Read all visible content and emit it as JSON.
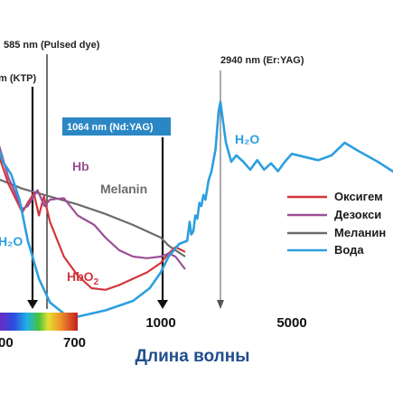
{
  "chart_data": {
    "type": "line",
    "title": "",
    "xlabel": "Длина волны",
    "ylabel": "",
    "x_ticks": [
      "00",
      "700",
      "1000",
      "5000"
    ],
    "annotations": [
      {
        "label": "585 nm (Pulsed dye)",
        "x": 585,
        "unit": "nm"
      },
      {
        "label": "m (KTP)",
        "x": 532,
        "unit": "nm"
      },
      {
        "label": "1064 nm (Nd:YAG)",
        "x": 1064,
        "unit": "nm"
      },
      {
        "label": "2940 nm (Er:YAG)",
        "x": 2940,
        "unit": "nm"
      }
    ],
    "inline_labels": {
      "hb": "Hb",
      "hbo2_main": "HbO",
      "hbo2_sub": "2",
      "melanin": "Melanin",
      "water_left": "H₂O",
      "water_right": "H₂O"
    },
    "legend": [
      "Оксигем",
      "Дезокси",
      "Меланин",
      "Вода"
    ],
    "colors": {
      "oxy": "#d2363c",
      "deoxy": "#9b4f96",
      "melanin": "#6b6b6b",
      "water": "#2c9fe0",
      "nd_yag_box": "#2a87c4",
      "axis_label": "#1f4e8c"
    },
    "series": [
      {
        "name": "Оксигем",
        "color": "#d2363c",
        "points": [
          [
            400,
            5.2
          ],
          [
            450,
            3.9
          ],
          [
            500,
            3.0
          ],
          [
            520,
            3.3
          ],
          [
            542,
            3.6
          ],
          [
            560,
            2.9
          ],
          [
            578,
            3.5
          ],
          [
            600,
            2.7
          ],
          [
            650,
            1.6
          ],
          [
            700,
            1.0
          ],
          [
            750,
            0.6
          ],
          [
            800,
            0.55
          ],
          [
            850,
            0.7
          ],
          [
            900,
            0.9
          ],
          [
            950,
            1.1
          ],
          [
            1000,
            1.4
          ],
          [
            1064,
            1.7
          ],
          [
            1120,
            1.9
          ],
          [
            1200,
            1.75
          ]
        ]
      },
      {
        "name": "Дезокси",
        "color": "#9b4f96",
        "points": [
          [
            400,
            5.6
          ],
          [
            450,
            4.1
          ],
          [
            500,
            3.1
          ],
          [
            520,
            3.2
          ],
          [
            555,
            3.7
          ],
          [
            580,
            3.2
          ],
          [
            600,
            3.4
          ],
          [
            650,
            3.45
          ],
          [
            700,
            2.9
          ],
          [
            760,
            2.6
          ],
          [
            800,
            2.2
          ],
          [
            850,
            1.8
          ],
          [
            900,
            1.6
          ],
          [
            950,
            1.55
          ],
          [
            1000,
            1.6
          ],
          [
            1064,
            1.7
          ],
          [
            1120,
            1.6
          ],
          [
            1200,
            1.2
          ]
        ]
      },
      {
        "name": "Меланин",
        "color": "#6b6b6b",
        "points": [
          [
            400,
            4.1
          ],
          [
            500,
            3.75
          ],
          [
            600,
            3.5
          ],
          [
            700,
            3.25
          ],
          [
            800,
            2.95
          ],
          [
            900,
            2.6
          ],
          [
            1000,
            2.2
          ],
          [
            1064,
            1.95
          ],
          [
            1120,
            1.8
          ],
          [
            1200,
            1.6
          ]
        ]
      },
      {
        "name": "Вода",
        "color": "#2c9fe0",
        "points": [
          [
            400,
            5.4
          ],
          [
            430,
            4.6
          ],
          [
            460,
            4.2
          ],
          [
            490,
            3.4
          ],
          [
            520,
            2.1
          ],
          [
            560,
            0.9
          ],
          [
            600,
            0.15
          ],
          [
            650,
            -0.2
          ],
          [
            700,
            -0.3
          ],
          [
            800,
            -0.1
          ],
          [
            900,
            0.2
          ],
          [
            960,
            0.6
          ],
          [
            1000,
            1.1
          ],
          [
            1064,
            1.6
          ],
          [
            1150,
            2.0
          ],
          [
            1300,
            2.1
          ],
          [
            1420,
            2.7
          ],
          [
            1500,
            2.3
          ],
          [
            1600,
            2.4
          ],
          [
            1700,
            2.9
          ],
          [
            1800,
            2.8
          ],
          [
            1900,
            3.3
          ],
          [
            2000,
            3.2
          ],
          [
            2100,
            3.55
          ],
          [
            2200,
            3.4
          ],
          [
            2350,
            4.0
          ],
          [
            2500,
            4.3
          ],
          [
            2700,
            5.0
          ],
          [
            2850,
            6.2
          ],
          [
            2940,
            6.5
          ],
          [
            3000,
            6.0
          ],
          [
            3100,
            5.2
          ],
          [
            3250,
            4.6
          ],
          [
            3400,
            4.8
          ],
          [
            3600,
            4.6
          ],
          [
            3800,
            4.35
          ],
          [
            4000,
            4.65
          ],
          [
            4200,
            4.35
          ],
          [
            4400,
            4.55
          ],
          [
            4600,
            4.3
          ],
          [
            4800,
            4.6
          ],
          [
            5000,
            4.85
          ],
          [
            5200,
            4.75
          ],
          [
            5400,
            4.65
          ],
          [
            5600,
            4.8
          ],
          [
            5800,
            5.2
          ],
          [
            6000,
            4.95
          ],
          [
            6300,
            4.6
          ],
          [
            6600,
            4.2
          ]
        ]
      }
    ]
  }
}
